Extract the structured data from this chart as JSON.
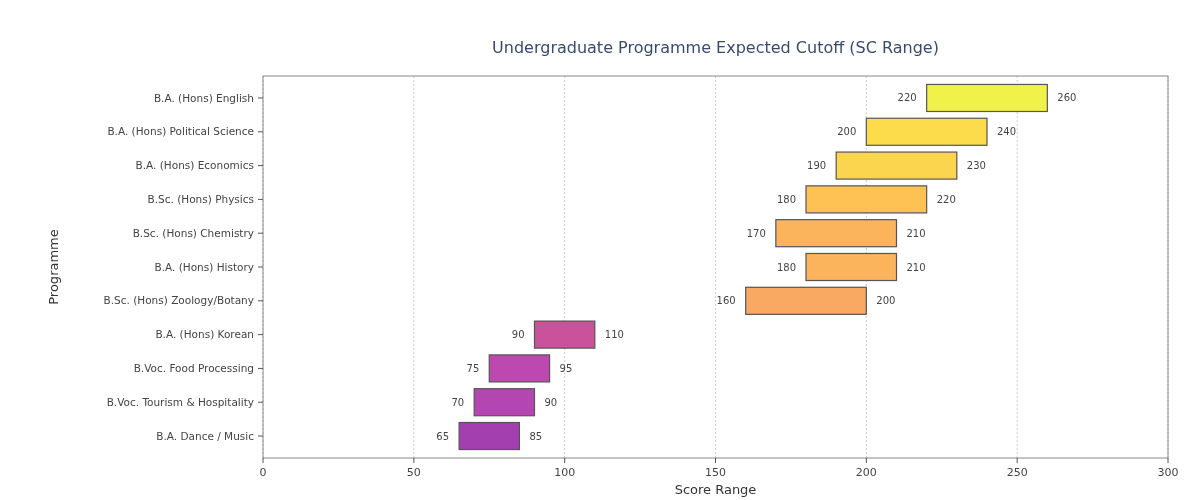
{
  "chart_data": {
    "type": "bar",
    "orientation": "horizontal",
    "title": "Undergraduate Programme Expected Cutoff (SC Range)",
    "xlabel": "Score Range",
    "ylabel": "Programme",
    "categories": [
      "B.A. (Hons) English",
      "B.A. (Hons) Political Science",
      "B.A. (Hons) Economics",
      "B.Sc. (Hons) Physics",
      "B.Sc. (Hons) Chemistry",
      "B.A. (Hons) History",
      "B.Sc. (Hons) Zoology/Botany",
      "B.A. (Hons) Korean",
      "B.Voc. Food Processing",
      "B.Voc. Tourism & Hospitality",
      "B.A. Dance / Music"
    ],
    "base": [
      220,
      200,
      190,
      180,
      170,
      180,
      160,
      90,
      75,
      70,
      65
    ],
    "values": [
      40,
      40,
      40,
      40,
      40,
      30,
      40,
      20,
      20,
      20,
      20
    ],
    "colors": [
      "#f0f24a",
      "#fcdc4a",
      "#fbd54d",
      "#fdc253",
      "#fbb45c",
      "#fbb45c",
      "#f9a962",
      "#c9529a",
      "#bc48b0",
      "#b446b2",
      "#a43fb0"
    ],
    "value_labels": [
      "260",
      "240",
      "230",
      "220",
      "210",
      "210",
      "200",
      "110",
      "95",
      "90",
      "85"
    ],
    "annotations": [
      {
        "text": "220",
        "x": 220,
        "y": "B.A. (Hons) English"
      },
      {
        "text": "200",
        "x": 200,
        "y": "B.A. (Hons) Political Science"
      },
      {
        "text": "190",
        "x": 190,
        "y": "B.A. (Hons) Economics"
      },
      {
        "text": "180",
        "x": 180,
        "y": "B.Sc. (Hons) Physics"
      },
      {
        "text": "170",
        "x": 170,
        "y": "B.Sc. (Hons) Chemistry"
      },
      {
        "text": "180",
        "x": 180,
        "y": "B.A. (Hons) History"
      },
      {
        "text": "160",
        "x": 160,
        "y": "B.Sc. (Hons) Zoology/Botany"
      },
      {
        "text": "90",
        "x": 90,
        "y": "B.A. (Hons) Korean"
      },
      {
        "text": "75",
        "x": 75,
        "y": "B.Voc. Food Processing"
      },
      {
        "text": "70",
        "x": 70,
        "y": "B.Voc. Tourism & Hospitality"
      },
      {
        "text": "65",
        "x": 65,
        "y": "B.A. Dance / Music"
      }
    ],
    "xlim": [
      0,
      300
    ],
    "xticks": [
      0,
      50,
      100,
      150,
      200,
      250,
      300
    ],
    "grid": "x"
  }
}
